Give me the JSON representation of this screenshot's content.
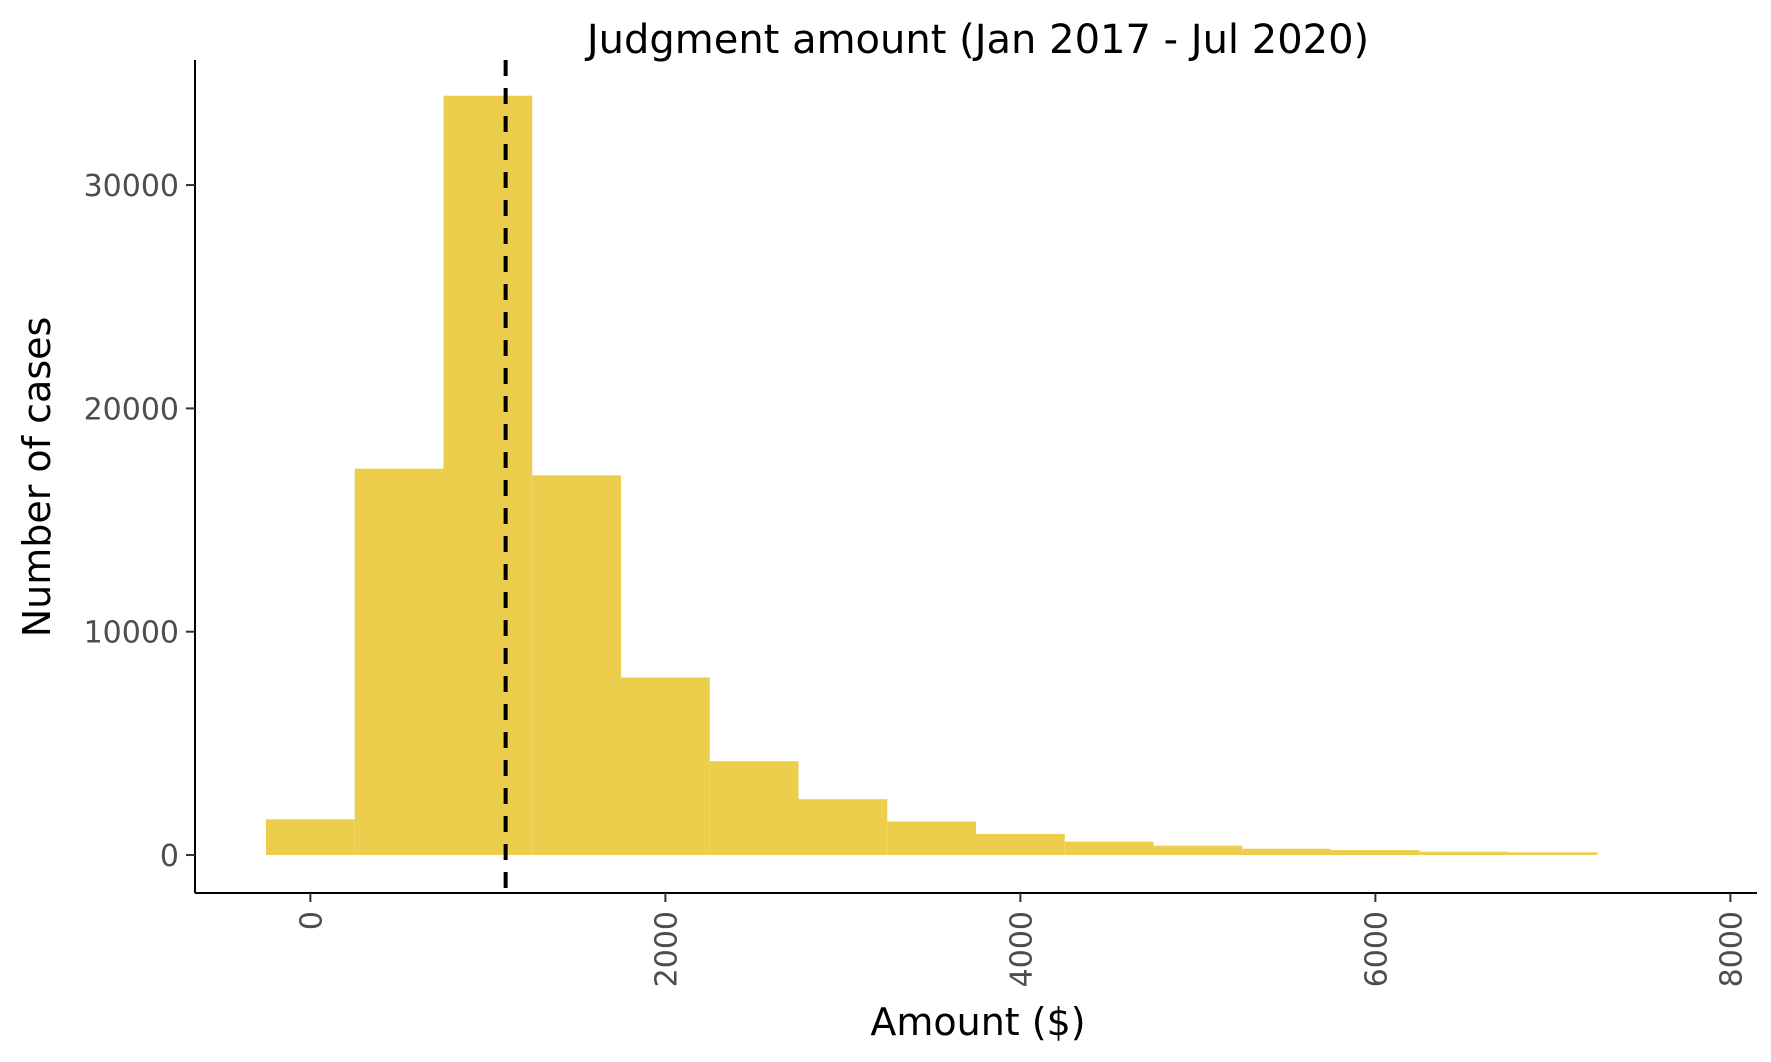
{
  "chart_data": {
    "type": "bar",
    "title": "Judgment amount (Jan 2017 - Jul 2020)",
    "xlabel": "Amount ($)",
    "ylabel": "Number of cases",
    "xlim": [
      -650,
      8150
    ],
    "ylim": [
      -1700,
      35600
    ],
    "x_ticks": [
      0,
      2000,
      4000,
      6000,
      8000
    ],
    "y_ticks": [
      0,
      10000,
      20000,
      30000
    ],
    "bin_width": 500,
    "bin_starts": [
      -250,
      250,
      750,
      1250,
      1750,
      2250,
      2750,
      3250,
      3750,
      4250,
      4750,
      5250,
      5750,
      6250,
      6750
    ],
    "values": [
      1600,
      17300,
      34000,
      17000,
      7950,
      4200,
      2500,
      1500,
      950,
      600,
      420,
      280,
      220,
      150,
      120
    ],
    "median_line": 1100,
    "bar_color": "#ecce4c",
    "grid": false,
    "legend": "none"
  }
}
